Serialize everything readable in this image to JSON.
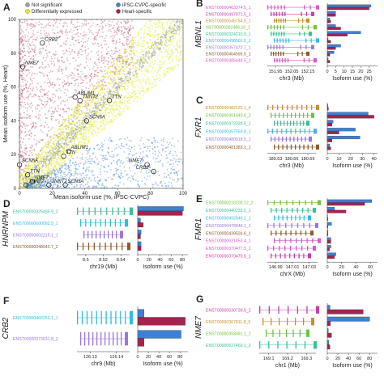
{
  "panels": {
    "A": {
      "letter": "A"
    },
    "B": {
      "letter": "B",
      "gene": "MBNL1"
    },
    "C": {
      "letter": "C",
      "gene": "FXR1"
    },
    "D": {
      "letter": "D",
      "gene": "HNRNPM"
    },
    "E": {
      "letter": "E",
      "gene": "FMR1"
    },
    "F": {
      "letter": "F",
      "gene": "CRB2"
    },
    "G": {
      "letter": "G",
      "gene": "NME7"
    }
  },
  "colors": {
    "grey": "#9e9e9e",
    "yellow": "#e1eb2d",
    "blue": "#3f7fd4",
    "maroon": "#a3244f",
    "pink": "#d957c9",
    "green": "#6fc23c",
    "magenta": "#c93cab",
    "orange": "#c58f2c",
    "teal": "#35c292",
    "cyan": "#35b9e4",
    "violet": "#9a76e0",
    "brown": "#8e5a2c"
  },
  "legend": {
    "items": [
      {
        "label": "Not significant",
        "color": "#9e9e9e"
      },
      {
        "label": "Differentially expressed",
        "color": "#e1eb2d"
      },
      {
        "label": "iPSC-CVPC-specific",
        "color": "#3f7fd4"
      },
      {
        "label": "Heart-specific",
        "color": "#a3244f"
      }
    ]
  },
  "chart_data": [
    {
      "panel": "A",
      "type": "scatter",
      "xlabel": "Mean isoform use (%, iPSC-CVPC)",
      "ylabel": "Mean isoform use (%, Heart)",
      "xlim": [
        0,
        100
      ],
      "ylim": [
        0,
        100
      ],
      "xticks": [
        "0",
        "20",
        "40",
        "60",
        "80",
        "100"
      ],
      "yticks": [
        "0",
        "20",
        "40",
        "60",
        "80",
        "100"
      ],
      "labeled_points": [
        {
          "label": "CRB2",
          "x": 14,
          "y": 86
        },
        {
          "label": "NME7",
          "x": 2,
          "y": 72
        },
        {
          "label": "ABLIM1",
          "x": 34,
          "y": 54
        },
        {
          "label": "TNNT2",
          "x": 37,
          "y": 52
        },
        {
          "label": "TTN",
          "x": 55,
          "y": 52
        },
        {
          "label": "SCN6A",
          "x": 41,
          "y": 40
        },
        {
          "label": "ABLIM1",
          "x": 30,
          "y": 22
        },
        {
          "label": "TTN",
          "x": 27,
          "y": 19
        },
        {
          "label": "SCN5A",
          "x": 0,
          "y": 14
        },
        {
          "label": "TTN",
          "x": 5,
          "y": 8
        },
        {
          "label": "NME7",
          "x": 8,
          "y": 4
        },
        {
          "label": "TNNT2",
          "x": 4,
          "y": 2
        },
        {
          "label": "TNNT2",
          "x": 18,
          "y": 2
        },
        {
          "label": "SCN5A",
          "x": 28,
          "y": 2
        },
        {
          "label": "NME7",
          "x": 78,
          "y": 14
        },
        {
          "label": "CRB2",
          "x": 82,
          "y": 10
        }
      ]
    },
    {
      "panel": "B",
      "type": "bar",
      "gene": "MBNL1",
      "xlabel": "Isoform use (%)",
      "genomic_xlabel": "chr3 (Mb)",
      "genomic_ticks": [
        "151.95",
        "152.05",
        "152.15"
      ],
      "xticks": [
        "0",
        "5",
        "10",
        "15",
        "20",
        "25"
      ],
      "xlim": [
        0,
        30
      ],
      "categories": [
        "ENST00000463374.5_1",
        "ENST00000497971.5_1",
        "ENST00000545754.5_1",
        "NST00000282486.10_1",
        "ENST00000324210.9_1",
        "ENST00000498502.5_2",
        "ENST00000357472.7_1",
        "ENST00000464595.5_1",
        "ENST00000485448.5_1"
      ],
      "series": [
        {
          "name": "iPSC-CVPC-specific",
          "values": [
            26,
            5,
            1.5,
            5,
            20,
            0.5,
            8,
            4,
            0.5
          ]
        },
        {
          "name": "Heart-specific",
          "values": [
            25,
            5,
            2,
            8,
            12,
            2,
            5,
            1.5,
            1.5
          ]
        }
      ]
    },
    {
      "panel": "C",
      "type": "bar",
      "gene": "FXR1",
      "xlabel": "Isoform use (%)",
      "genomic_xlabel": "chr3 (Mb)",
      "genomic_ticks": [
        "180.63",
        "180.66",
        "180.69"
      ],
      "xticks": [
        "0",
        "10",
        "20",
        "30",
        "40"
      ],
      "xlim": [
        0,
        43
      ],
      "categories": [
        "ENST00000482125.1_4",
        "ENST00000451440.6_2",
        "ENST00000472339.5_1",
        "ENST00000357559.8_1",
        "ENST00000480918.5_1",
        "ENST00000481383.1_1"
      ],
      "series": [
        {
          "name": "iPSC-CVPC-specific",
          "values": [
            0.5,
            35,
            5,
            24,
            28,
            2
          ]
        },
        {
          "name": "Heart-specific",
          "values": [
            1,
            40,
            4,
            10,
            4,
            3
          ]
        }
      ]
    },
    {
      "panel": "D",
      "type": "bar",
      "gene": "HNRNPM",
      "xlabel": "Isoform use (%)",
      "genomic_xlabel": "chr19 (Mb)",
      "genomic_ticks": [
        "8.5",
        "8.52",
        "8.54"
      ],
      "xticks": [
        "0",
        "20",
        "40",
        "60",
        "80"
      ],
      "xlim": [
        0,
        90
      ],
      "categories": [
        "ENST00000325495.9_2",
        "ENST00000600092.5_1",
        "ENST00000602219.1_1",
        "ENST00000348943.7_2"
      ],
      "series": [
        {
          "name": "iPSC-CVPC-specific",
          "values": [
            82,
            5,
            6,
            6
          ]
        },
        {
          "name": "Heart-specific",
          "values": [
            80,
            10,
            5,
            6
          ]
        }
      ]
    },
    {
      "panel": "E",
      "type": "bar",
      "gene": "FMR1",
      "xlabel": "Isoform use (%)",
      "genomic_xlabel": "chrX (Mb)",
      "genomic_ticks": [
        "146.99",
        "147.01",
        "147.03"
      ],
      "xticks": [
        "0",
        "20",
        "40",
        "60"
      ],
      "xlim": [
        0,
        70
      ],
      "categories": [
        "ENST00000218200.12_2",
        "ENST00000440235.6_1",
        "ENST00000492846.1_1",
        "ENST00000478848.1_1",
        "ENST00000439526.6_1",
        "ENST00000621453.4_1",
        "ENST00000370477.5_1",
        "ENST00000370470.5_1"
      ],
      "series": [
        {
          "name": "iPSC-CVPC-specific",
          "values": [
            62,
            10,
            0.5,
            6,
            1,
            5,
            5,
            12
          ]
        },
        {
          "name": "Heart-specific",
          "values": [
            52,
            26,
            1,
            1,
            1,
            5,
            3,
            10
          ]
        }
      ]
    },
    {
      "panel": "F",
      "type": "bar",
      "gene": "CRB2",
      "xlabel": "Isoform use (%)",
      "genomic_xlabel": "chr9 (Mb)",
      "genomic_ticks": [
        "126.13",
        "126.14"
      ],
      "xticks": [
        "0",
        "20",
        "40",
        "60",
        "80"
      ],
      "xlim": [
        0,
        95
      ],
      "categories": [
        "ENST00000460253.1_1",
        "ENST00000373631.8_2"
      ],
      "series": [
        {
          "name": "iPSC-CVPC-specific",
          "values": [
            12,
            82
          ]
        },
        {
          "name": "Heart-specific",
          "values": [
            90,
            12
          ]
        }
      ]
    },
    {
      "panel": "G",
      "type": "bar",
      "gene": "NME7",
      "xlabel": "Isoform use (%)",
      "genomic_xlabel": "chr1 (Mb)",
      "genomic_ticks": [
        "169.1",
        "169.2",
        "169.3"
      ],
      "xticks": [
        "0",
        "20",
        "40",
        "60",
        "80"
      ],
      "xlim": [
        0,
        95
      ],
      "categories": [
        "ENST00000530739.5_2",
        "ENST00000367811.8_5",
        "ENST00000493481.1_2",
        "ENST00000527460.1_2"
      ],
      "series": [
        {
          "name": "iPSC-CVPC-specific",
          "values": [
            5,
            80,
            2,
            3
          ]
        },
        {
          "name": "Heart-specific",
          "values": [
            68,
            6,
            8,
            5
          ]
        }
      ]
    }
  ]
}
